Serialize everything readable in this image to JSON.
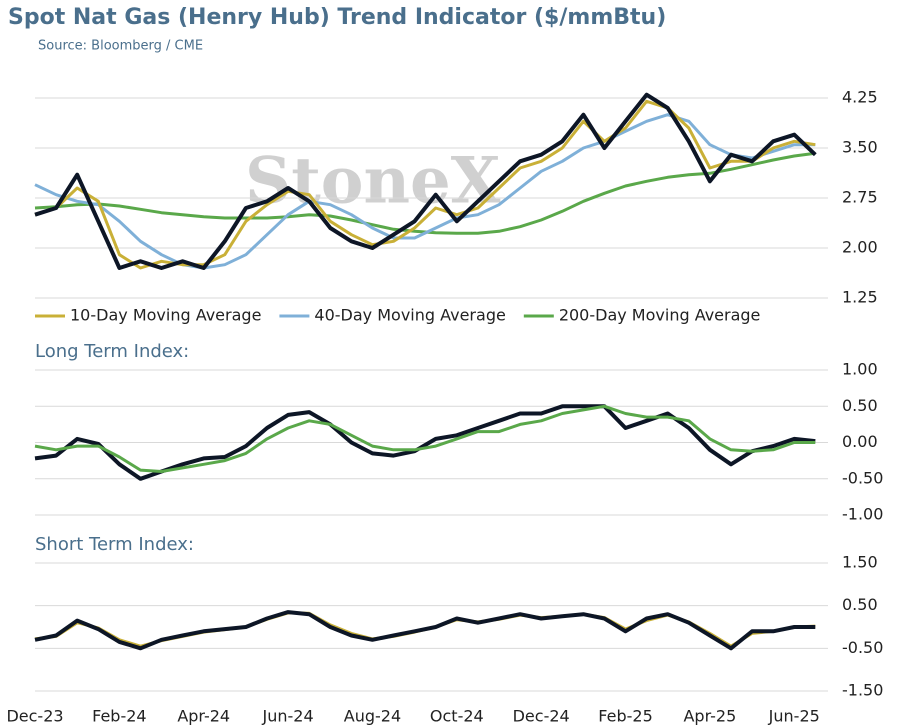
{
  "title": "Spot Nat Gas (Henry Hub) Trend Indicator ($/mmBtu)",
  "source": "Source: Bloomberg / CME",
  "watermark": "StoneX",
  "chart_data": [
    {
      "type": "line",
      "grid": true,
      "ylim": [
        1.25,
        4.25
      ],
      "xlim": [
        0,
        18.8
      ],
      "yticks": [
        1.25,
        {
          "value": 2,
          "label": "2.00"
        },
        2.75,
        {
          "value": 3.5,
          "label": "3.50"
        },
        4.25
      ],
      "x": [
        0,
        0.5,
        1,
        1.5,
        2,
        2.5,
        3,
        3.5,
        4,
        4.5,
        5,
        5.5,
        6,
        6.5,
        7,
        7.5,
        8,
        8.5,
        9,
        9.5,
        10,
        10.5,
        11,
        11.5,
        12,
        12.5,
        13,
        13.5,
        14,
        14.5,
        15,
        15.5,
        16,
        16.5,
        17,
        17.5,
        18,
        18.5
      ],
      "series": [
        {
          "name": "200-Day Moving Average",
          "color": "#5aa84a",
          "values": [
            2.6,
            2.62,
            2.65,
            2.66,
            2.63,
            2.58,
            2.53,
            2.5,
            2.47,
            2.45,
            2.45,
            2.45,
            2.47,
            2.5,
            2.48,
            2.42,
            2.35,
            2.28,
            2.25,
            2.23,
            2.22,
            2.22,
            2.25,
            2.32,
            2.42,
            2.55,
            2.7,
            2.82,
            2.93,
            3.0,
            3.06,
            3.1,
            3.12,
            3.18,
            3.25,
            3.32,
            3.38,
            3.42
          ]
        },
        {
          "name": "40-Day Moving Average",
          "color": "#7fb0d8",
          "values": [
            2.95,
            2.8,
            2.7,
            2.65,
            2.4,
            2.1,
            1.9,
            1.75,
            1.7,
            1.75,
            1.9,
            2.2,
            2.5,
            2.7,
            2.65,
            2.5,
            2.3,
            2.15,
            2.15,
            2.3,
            2.45,
            2.5,
            2.65,
            2.9,
            3.15,
            3.3,
            3.5,
            3.6,
            3.75,
            3.9,
            4.0,
            3.9,
            3.55,
            3.4,
            3.35,
            3.45,
            3.55,
            3.55
          ]
        },
        {
          "name": "10-Day Moving Average",
          "color": "#c9b037",
          "values": [
            2.5,
            2.6,
            2.9,
            2.7,
            1.9,
            1.7,
            1.8,
            1.75,
            1.75,
            1.9,
            2.4,
            2.65,
            2.85,
            2.8,
            2.4,
            2.2,
            2.05,
            2.1,
            2.3,
            2.6,
            2.5,
            2.6,
            2.9,
            3.2,
            3.3,
            3.5,
            3.9,
            3.6,
            3.8,
            4.2,
            4.1,
            3.8,
            3.2,
            3.3,
            3.3,
            3.5,
            3.6,
            3.55
          ]
        },
        {
          "color": "#0d1626",
          "values": [
            2.5,
            2.6,
            3.1,
            2.4,
            1.7,
            1.8,
            1.7,
            1.8,
            1.7,
            2.1,
            2.6,
            2.7,
            2.9,
            2.7,
            2.3,
            2.1,
            2.0,
            2.2,
            2.4,
            2.8,
            2.4,
            2.7,
            3.0,
            3.3,
            3.4,
            3.6,
            4.0,
            3.5,
            3.9,
            4.3,
            4.1,
            3.6,
            3.0,
            3.4,
            3.3,
            3.6,
            3.7,
            3.4
          ]
        }
      ],
      "legend": "top"
    },
    {
      "type": "line",
      "grid": true,
      "title": "Long Term Index:",
      "ylim": [
        -1,
        1
      ],
      "xlim": [
        0,
        18.8
      ],
      "yticks": [
        {
          "value": -1,
          "label": "-1.00"
        },
        {
          "value": -0.5,
          "label": "-0.50"
        },
        {
          "value": 0,
          "label": "0.00"
        },
        {
          "value": 0.5,
          "label": "0.50"
        },
        {
          "value": 1,
          "label": "1.00"
        }
      ],
      "x": [
        0,
        0.5,
        1,
        1.5,
        2,
        2.5,
        3,
        3.5,
        4,
        4.5,
        5,
        5.5,
        6,
        6.5,
        7,
        7.5,
        8,
        8.5,
        9,
        9.5,
        10,
        10.5,
        11,
        11.5,
        12,
        12.5,
        13,
        13.5,
        14,
        14.5,
        15,
        15.5,
        16,
        16.5,
        17,
        17.5,
        18,
        18.5
      ],
      "series": [
        {
          "color": "#0d1626",
          "values": [
            -0.22,
            -0.18,
            0.05,
            -0.02,
            -0.3,
            -0.5,
            -0.4,
            -0.3,
            -0.22,
            -0.2,
            -0.05,
            0.2,
            0.38,
            0.42,
            0.25,
            0.0,
            -0.15,
            -0.18,
            -0.12,
            0.05,
            0.1,
            0.2,
            0.3,
            0.4,
            0.4,
            0.5,
            0.5,
            0.5,
            0.2,
            0.3,
            0.4,
            0.2,
            -0.1,
            -0.3,
            -0.12,
            -0.05,
            0.05,
            0.02
          ]
        },
        {
          "color": "#5aa84a",
          "values": [
            -0.05,
            -0.1,
            -0.05,
            -0.05,
            -0.2,
            -0.38,
            -0.4,
            -0.35,
            -0.3,
            -0.25,
            -0.15,
            0.05,
            0.2,
            0.3,
            0.25,
            0.1,
            -0.05,
            -0.1,
            -0.1,
            -0.05,
            0.05,
            0.15,
            0.15,
            0.25,
            0.3,
            0.4,
            0.45,
            0.5,
            0.4,
            0.35,
            0.35,
            0.3,
            0.05,
            -0.1,
            -0.12,
            -0.1,
            0.0,
            0.0
          ]
        }
      ]
    },
    {
      "type": "line",
      "grid": true,
      "title": "Short Term Index:",
      "ylim": [
        -1.5,
        1.5
      ],
      "xlim": [
        0,
        18.8
      ],
      "yticks": [
        {
          "value": -1.5,
          "label": "-1.50"
        },
        {
          "value": -0.5,
          "label": "-0.50"
        },
        {
          "value": 0.5,
          "label": "0.50"
        },
        {
          "value": 1.5,
          "label": "1.50"
        }
      ],
      "xticks": [
        {
          "value": 0,
          "label": "Dec-23"
        },
        {
          "value": 2,
          "label": "Feb-24"
        },
        {
          "value": 4,
          "label": "Apr-24"
        },
        {
          "value": 6,
          "label": "Jun-24"
        },
        {
          "value": 8,
          "label": "Aug-24"
        },
        {
          "value": 10,
          "label": "Oct-24"
        },
        {
          "value": 12,
          "label": "Dec-24"
        },
        {
          "value": 14,
          "label": "Feb-25"
        },
        {
          "value": 16,
          "label": "Apr-25"
        },
        {
          "value": 18,
          "label": "Jun-25"
        }
      ],
      "x": [
        0,
        0.5,
        1,
        1.5,
        2,
        2.5,
        3,
        3.5,
        4,
        4.5,
        5,
        5.5,
        6,
        6.5,
        7,
        7.5,
        8,
        8.5,
        9,
        9.5,
        10,
        10.5,
        11,
        11.5,
        12,
        12.5,
        13,
        13.5,
        14,
        14.5,
        15,
        15.5,
        16,
        16.5,
        17,
        17.5,
        18,
        18.5
      ],
      "series": [
        {
          "color": "#c9b037",
          "values": [
            -0.28,
            -0.22,
            0.1,
            -0.02,
            -0.3,
            -0.45,
            -0.32,
            -0.22,
            -0.12,
            -0.06,
            0.0,
            0.18,
            0.33,
            0.32,
            0.05,
            -0.15,
            -0.28,
            -0.22,
            -0.12,
            0.0,
            0.17,
            0.12,
            0.18,
            0.28,
            0.22,
            0.25,
            0.3,
            0.22,
            -0.05,
            0.15,
            0.28,
            0.12,
            -0.15,
            -0.45,
            -0.15,
            -0.1,
            0.0,
            0.02
          ]
        },
        {
          "color": "#0d1626",
          "values": [
            -0.3,
            -0.2,
            0.15,
            -0.05,
            -0.35,
            -0.5,
            -0.3,
            -0.2,
            -0.1,
            -0.05,
            0.0,
            0.2,
            0.35,
            0.3,
            0.0,
            -0.2,
            -0.3,
            -0.2,
            -0.1,
            0.0,
            0.2,
            0.1,
            0.2,
            0.3,
            0.2,
            0.25,
            0.3,
            0.2,
            -0.1,
            0.2,
            0.3,
            0.1,
            -0.2,
            -0.5,
            -0.1,
            -0.1,
            0.0,
            0.0
          ]
        }
      ]
    }
  ]
}
